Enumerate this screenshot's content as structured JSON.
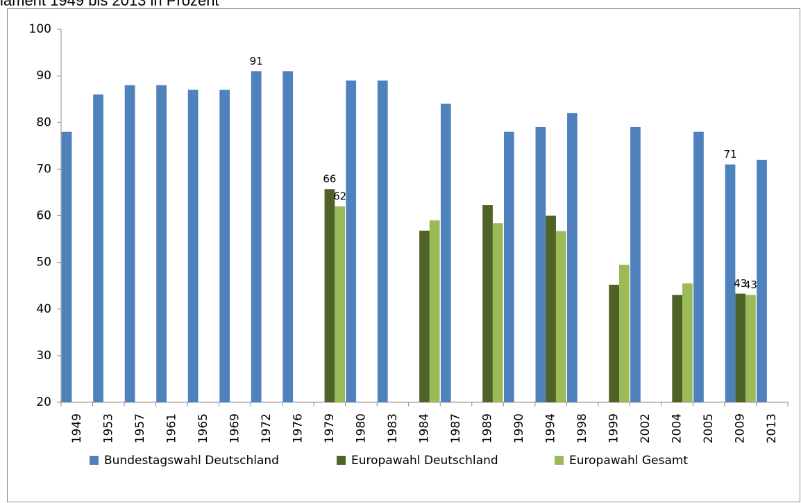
{
  "chart_data": {
    "type": "bar",
    "title": "lament 1949 bis 2013 in Prozent",
    "categories": [
      "1949",
      "1953",
      "1957",
      "1961",
      "1965",
      "1969",
      "1972",
      "1976",
      "1979",
      "1980",
      "1983",
      "1984",
      "1987",
      "1989",
      "1990",
      "1994",
      "1998",
      "1999",
      "2002",
      "2004",
      "2005",
      "2009",
      "2013"
    ],
    "series": [
      {
        "name": "Bundestagswahl Deutschland",
        "color": "#4f81bd",
        "values": [
          78,
          86,
          88,
          88,
          87,
          87,
          91,
          91,
          null,
          89,
          89,
          null,
          84,
          null,
          78,
          79,
          82,
          null,
          79,
          null,
          78,
          71,
          72
        ],
        "value_labels": [
          null,
          null,
          null,
          null,
          null,
          null,
          "91",
          null,
          null,
          null,
          null,
          null,
          null,
          null,
          null,
          null,
          null,
          null,
          null,
          null,
          null,
          "71",
          null
        ]
      },
      {
        "name": "Europawahl Deutschland",
        "color": "#4f6228",
        "values": [
          null,
          null,
          null,
          null,
          null,
          null,
          null,
          null,
          65.7,
          null,
          null,
          56.8,
          null,
          62.3,
          null,
          60.0,
          null,
          45.2,
          null,
          43.0,
          null,
          43.3,
          null
        ],
        "value_labels": [
          null,
          null,
          null,
          null,
          null,
          null,
          null,
          null,
          "66",
          null,
          null,
          null,
          null,
          null,
          null,
          null,
          null,
          null,
          null,
          null,
          null,
          "43",
          null
        ]
      },
      {
        "name": "Europawahl Gesamt",
        "color": "#9bbb59",
        "values": [
          null,
          null,
          null,
          null,
          null,
          null,
          null,
          null,
          62,
          null,
          null,
          59,
          null,
          58.4,
          null,
          56.7,
          null,
          49.5,
          null,
          45.5,
          null,
          43,
          null
        ],
        "value_labels": [
          null,
          null,
          null,
          null,
          null,
          null,
          null,
          null,
          "62",
          null,
          null,
          null,
          null,
          null,
          null,
          null,
          null,
          null,
          null,
          null,
          null,
          "43",
          null
        ]
      }
    ],
    "ylim": [
      20,
      100
    ],
    "yticks": [
      20,
      30,
      40,
      50,
      60,
      70,
      80,
      90,
      100
    ],
    "grid": false,
    "legend": "bottom"
  }
}
